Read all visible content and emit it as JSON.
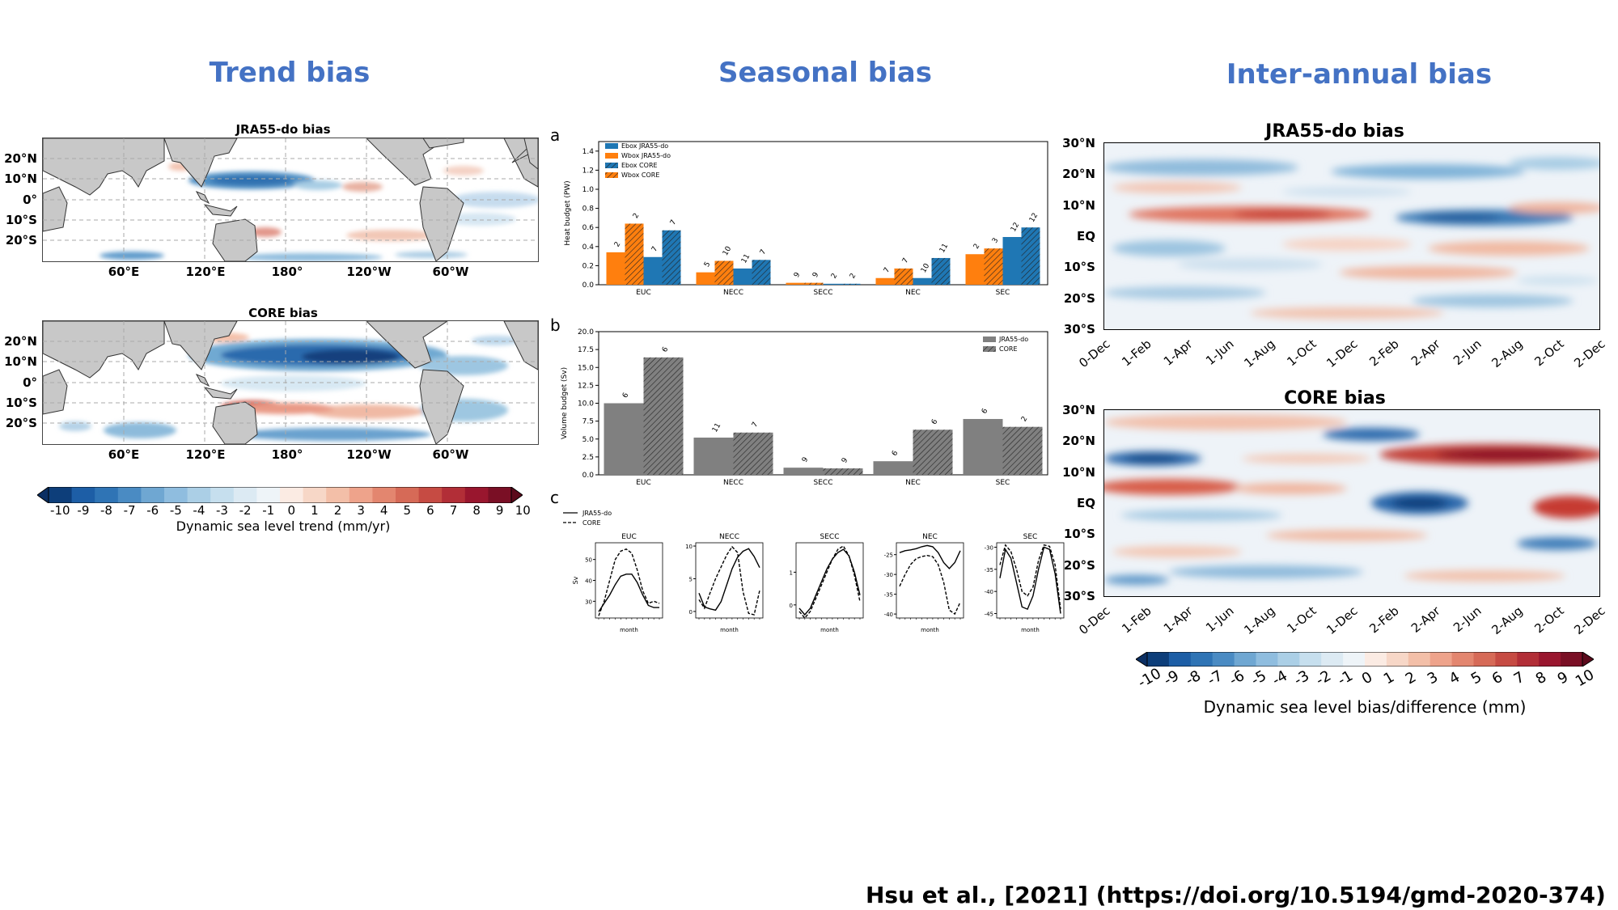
{
  "titles": {
    "trend": "Trend bias",
    "seasonal": "Seasonal bias",
    "interannual": "Inter-annual bias"
  },
  "trend": {
    "panel1_title": "JRA55-do bias",
    "panel2_title": "CORE bias",
    "lat_labels": [
      "20°N",
      "10°N",
      "0°",
      "10°S",
      "20°S"
    ],
    "lon_labels": [
      "60°E",
      "120°E",
      "180°",
      "120°W",
      "60°W"
    ],
    "colorbar_ticks": [
      "-10",
      "-9",
      "-8",
      "-7",
      "-6",
      "-5",
      "-4",
      "-3",
      "-2",
      "-1",
      "0",
      "1",
      "2",
      "3",
      "4",
      "5",
      "6",
      "7",
      "8",
      "9",
      "10"
    ],
    "colorbar_label": "Dynamic sea level trend (mm/yr)"
  },
  "seasonal": {
    "letters": [
      "a",
      "b",
      "c"
    ],
    "heat": {
      "ylabel": "Heat budget (PW)",
      "yticks": [
        "0.0",
        "0.2",
        "0.4",
        "0.6",
        "0.8",
        "1.0",
        "1.2",
        "1.4"
      ],
      "categories": [
        "EUC",
        "NECC",
        "SECC",
        "NEC",
        "SEC"
      ],
      "legend": [
        "Ebox JRA55-do",
        "Wbox JRA55-do",
        "Ebox CORE",
        "Wbox CORE"
      ],
      "annotations": [
        [
          "2",
          "2",
          "7",
          "7"
        ],
        [
          "5",
          "10",
          "11",
          "7"
        ],
        [
          "9",
          "9",
          "2",
          "2"
        ],
        [
          "7",
          "7",
          "10",
          "11"
        ],
        [
          "2",
          "3",
          "12",
          "12"
        ]
      ]
    },
    "volume": {
      "ylabel": "Volume budget (Sv)",
      "yticks": [
        "0.0",
        "2.5",
        "5.0",
        "7.5",
        "10.0",
        "12.5",
        "15.0",
        "17.5",
        "20.0"
      ],
      "categories": [
        "EUC",
        "NECC",
        "SECC",
        "NEC",
        "SEC"
      ],
      "legend": [
        "JRA55-do",
        "CORE"
      ],
      "annotations": [
        [
          "6",
          "6"
        ],
        [
          "11",
          "7"
        ],
        [
          "9",
          "9"
        ],
        [
          "6",
          "6"
        ],
        [
          "6",
          "2"
        ]
      ]
    },
    "small": {
      "legend": [
        "JRA55-do",
        "CORE"
      ],
      "titles": [
        "EUC",
        "NECC",
        "SECC",
        "NEC",
        "SEC"
      ],
      "ylabel": "Sv",
      "xlabel": "month",
      "yticks": [
        [
          "30",
          "40",
          "50"
        ],
        [
          "0",
          "5",
          "10"
        ],
        [
          "0",
          "1"
        ],
        [
          "-40",
          "-35",
          "-30",
          "-25"
        ],
        [
          "-45",
          "-40",
          "-35",
          "-30"
        ]
      ]
    }
  },
  "interannual": {
    "panel1_title": "JRA55-do bias",
    "panel2_title": "CORE bias",
    "lat_labels": [
      "30°N",
      "20°N",
      "10°N",
      "EQ",
      "10°S",
      "20°S",
      "30°S"
    ],
    "time_labels": [
      "0-Dec",
      "1-Feb",
      "1-Apr",
      "1-Jun",
      "1-Aug",
      "1-Oct",
      "1-Dec",
      "2-Feb",
      "2-Apr",
      "2-Jun",
      "2-Aug",
      "2-Oct",
      "2-Dec"
    ],
    "colorbar_ticks": [
      "-10",
      "-9",
      "-8",
      "-7",
      "-6",
      "-5",
      "-4",
      "-3",
      "-2",
      "-1",
      "0",
      "1",
      "2",
      "3",
      "4",
      "5",
      "6",
      "7",
      "8",
      "9",
      "10"
    ],
    "colorbar_label": "Dynamic sea level bias/difference (mm)"
  },
  "citation": "Hsu et al., [2021] (https://doi.org/10.5194/gmd-2020-374)",
  "colors": {
    "title_blue": "#4472C4",
    "ebox_blue": "#1f77b4",
    "wbox_orange": "#ff7f0e",
    "gray_bar": "#808080",
    "land": "#c8c8c8"
  },
  "chart_data": [
    {
      "type": "bar",
      "title": "",
      "ylabel": "Heat budget (PW)",
      "categories": [
        "EUC",
        "NECC",
        "SECC",
        "NEC",
        "SEC"
      ],
      "ylim": [
        0,
        1.5
      ],
      "series": [
        {
          "name": "Ebox JRA55-do",
          "values": [
            0.34,
            0.13,
            0.02,
            0.07,
            0.32
          ]
        },
        {
          "name": "Wbox JRA55-do",
          "values": [
            0.64,
            0.25,
            0.02,
            0.17,
            0.38
          ]
        },
        {
          "name": "Ebox CORE",
          "values": [
            0.29,
            0.17,
            0.01,
            0.07,
            0.5
          ]
        },
        {
          "name": "Wbox CORE",
          "values": [
            0.57,
            0.26,
            0.01,
            0.28,
            0.6
          ]
        }
      ]
    },
    {
      "type": "bar",
      "title": "",
      "ylabel": "Volume budget (Sv)",
      "categories": [
        "EUC",
        "NECC",
        "SECC",
        "NEC",
        "SEC"
      ],
      "ylim": [
        0,
        20
      ],
      "series": [
        {
          "name": "JRA55-do",
          "values": [
            10.0,
            5.2,
            1.0,
            1.9,
            7.8
          ]
        },
        {
          "name": "CORE",
          "values": [
            16.4,
            5.9,
            0.9,
            6.3,
            6.7
          ]
        }
      ]
    },
    {
      "type": "line",
      "title": "EUC",
      "x": [
        1,
        2,
        3,
        4,
        5,
        6,
        7,
        8,
        9,
        10,
        11,
        12
      ],
      "ylim": [
        22,
        58
      ],
      "series": [
        {
          "name": "JRA55-do",
          "values": [
            25,
            29,
            33,
            38,
            42,
            43,
            43,
            39,
            33,
            28,
            27,
            27
          ]
        },
        {
          "name": "CORE",
          "values": [
            23,
            30,
            40,
            50,
            54,
            55,
            53,
            45,
            35,
            29,
            30,
            29
          ]
        }
      ]
    },
    {
      "type": "line",
      "title": "NECC",
      "x": [
        1,
        2,
        3,
        4,
        5,
        6,
        7,
        8,
        9,
        10,
        11,
        12
      ],
      "ylim": [
        -1,
        10.5
      ],
      "series": [
        {
          "name": "JRA55-do",
          "values": [
            2.8,
            0.7,
            0.4,
            0.2,
            1.5,
            4.0,
            6.5,
            8.3,
            9.2,
            9.6,
            8.4,
            6.7
          ]
        },
        {
          "name": "CORE",
          "values": [
            1.8,
            0.5,
            2.8,
            5.0,
            6.8,
            8.6,
            9.9,
            9.0,
            3.0,
            -0.3,
            -0.5,
            3.2
          ]
        }
      ]
    },
    {
      "type": "line",
      "title": "SECC",
      "x": [
        1,
        2,
        3,
        4,
        5,
        6,
        7,
        8,
        9,
        10,
        11,
        12
      ],
      "ylim": [
        -0.4,
        1.9
      ],
      "series": [
        {
          "name": "JRA55-do",
          "values": [
            -0.1,
            -0.3,
            -0.1,
            0.3,
            0.7,
            1.1,
            1.4,
            1.6,
            1.7,
            1.5,
            1.0,
            0.3
          ]
        },
        {
          "name": "CORE",
          "values": [
            -0.2,
            -0.4,
            -0.2,
            0.2,
            0.6,
            1.0,
            1.4,
            1.7,
            1.8,
            1.5,
            0.9,
            0.1
          ]
        }
      ]
    },
    {
      "type": "line",
      "title": "NEC",
      "x": [
        1,
        2,
        3,
        4,
        5,
        6,
        7,
        8,
        9,
        10,
        11,
        12
      ],
      "ylim": [
        -41,
        -22
      ],
      "series": [
        {
          "name": "JRA55-do",
          "values": [
            -24.5,
            -24.0,
            -23.8,
            -23.5,
            -23.0,
            -22.7,
            -23.0,
            -24.5,
            -27.0,
            -28.5,
            -27.0,
            -24.0
          ]
        },
        {
          "name": "CORE",
          "values": [
            -33.0,
            -30.0,
            -27.5,
            -26.0,
            -25.5,
            -25.2,
            -25.5,
            -27.5,
            -32.0,
            -39.0,
            -40.0,
            -37.0
          ]
        }
      ]
    },
    {
      "type": "line",
      "title": "SEC",
      "x": [
        1,
        2,
        3,
        4,
        5,
        6,
        7,
        8,
        9,
        10,
        11,
        12
      ],
      "ylim": [
        -46,
        -29
      ],
      "series": [
        {
          "name": "JRA55-do",
          "values": [
            -37.0,
            -30.5,
            -32.5,
            -38.0,
            -43.5,
            -44.0,
            -41.0,
            -35.0,
            -30.0,
            -30.5,
            -36.0,
            -45.0
          ]
        },
        {
          "name": "CORE",
          "values": [
            -34.0,
            -29.5,
            -31.0,
            -35.0,
            -40.0,
            -41.0,
            -39.0,
            -33.0,
            -29.5,
            -29.8,
            -34.0,
            -44.0
          ]
        }
      ]
    }
  ]
}
